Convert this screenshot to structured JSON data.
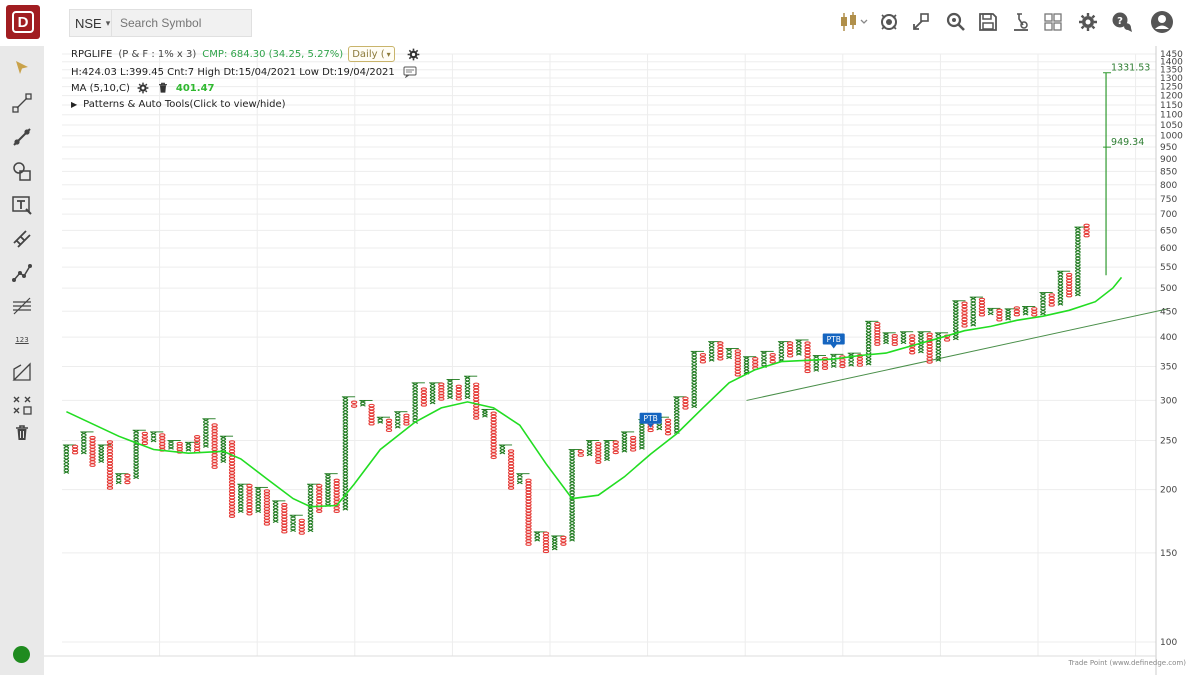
{
  "app": {
    "logo_letter": "D"
  },
  "topbar": {
    "exchange": "NSE",
    "search_placeholder": "Search Symbol",
    "icons": [
      "candlestick-icon",
      "indicator-icon",
      "compare-icon",
      "scan-settings-icon",
      "save-icon",
      "lab-icon",
      "layout-grid-icon",
      "settings-icon",
      "chat-icon",
      "user-icon"
    ]
  },
  "left_toolbar": {
    "tools": [
      "cursor-icon",
      "line-segment-icon",
      "trendline-icon",
      "shapes-icon",
      "text-tool-icon",
      "measure-icon",
      "pattern-icon",
      "fib-icon",
      "count-123-icon",
      "projection-icon",
      "auto-tools-icon",
      "delete-icon"
    ],
    "count_label": "123",
    "status_color": "#1f8b1f"
  },
  "chart_header": {
    "symbol": "RPGLIFE",
    "pf_params": "(P & F : 1% x 3)",
    "cmp": "CMP: 684.30 (34.25, 5.27%)",
    "timeframe": "Daily (",
    "stats": "H:424.03 L:399.45 Cnt:7 High Dt:15/04/2021 Low Dt:19/04/2021",
    "ma_label": "MA (5,10,C)",
    "ma_value": "401.47",
    "patterns_label": "Patterns & Auto Tools(Click to view/hide)",
    "patterns_arrow": "▶"
  },
  "colors": {
    "x_column": "#1f7a1f",
    "o_column": "#e53935",
    "ma_line": "#22dd22",
    "trendline": "#4a8f4a",
    "target_line": "#2f9a2f",
    "ptb_badge": "#1565c0"
  },
  "chart_data": {
    "type": "point-and-figure",
    "y_scale": "log",
    "ylim": [
      100,
      1450
    ],
    "y_ticks": [
      100,
      150,
      200,
      250,
      300,
      350,
      400,
      450,
      500,
      550,
      600,
      650,
      700,
      750,
      800,
      850,
      900,
      950,
      1000,
      1050,
      1100,
      1150,
      1200,
      1250,
      1300,
      1350,
      1400,
      1450
    ],
    "columns": [
      {
        "t": "X",
        "lo": 215,
        "hi": 245
      },
      {
        "t": "O",
        "lo": 235,
        "hi": 245
      },
      {
        "t": "X",
        "lo": 235,
        "hi": 260
      },
      {
        "t": "O",
        "lo": 222,
        "hi": 255
      },
      {
        "t": "X",
        "lo": 226,
        "hi": 245
      },
      {
        "t": "O",
        "lo": 200,
        "hi": 250
      },
      {
        "t": "X",
        "lo": 205,
        "hi": 215
      },
      {
        "t": "O",
        "lo": 205,
        "hi": 215
      },
      {
        "t": "X",
        "lo": 210,
        "hi": 262
      },
      {
        "t": "O",
        "lo": 245,
        "hi": 260
      },
      {
        "t": "X",
        "lo": 248,
        "hi": 260
      },
      {
        "t": "O",
        "lo": 238,
        "hi": 258
      },
      {
        "t": "X",
        "lo": 240,
        "hi": 250
      },
      {
        "t": "O",
        "lo": 236,
        "hi": 248
      },
      {
        "t": "X",
        "lo": 238,
        "hi": 248
      },
      {
        "t": "O",
        "lo": 236,
        "hi": 256
      },
      {
        "t": "X",
        "lo": 242,
        "hi": 276
      },
      {
        "t": "O",
        "lo": 220,
        "hi": 270
      },
      {
        "t": "X",
        "lo": 226,
        "hi": 255
      },
      {
        "t": "O",
        "lo": 176,
        "hi": 250
      },
      {
        "t": "X",
        "lo": 180,
        "hi": 205
      },
      {
        "t": "O",
        "lo": 178,
        "hi": 205
      },
      {
        "t": "X",
        "lo": 180,
        "hi": 202
      },
      {
        "t": "O",
        "lo": 170,
        "hi": 200
      },
      {
        "t": "X",
        "lo": 172,
        "hi": 190
      },
      {
        "t": "O",
        "lo": 164,
        "hi": 188
      },
      {
        "t": "X",
        "lo": 165,
        "hi": 178
      },
      {
        "t": "O",
        "lo": 163,
        "hi": 175
      },
      {
        "t": "X",
        "lo": 165,
        "hi": 205
      },
      {
        "t": "O",
        "lo": 180,
        "hi": 205
      },
      {
        "t": "X",
        "lo": 185,
        "hi": 215
      },
      {
        "t": "O",
        "lo": 180,
        "hi": 210
      },
      {
        "t": "X",
        "lo": 182,
        "hi": 305
      },
      {
        "t": "O",
        "lo": 290,
        "hi": 300
      },
      {
        "t": "X",
        "lo": 292,
        "hi": 300
      },
      {
        "t": "O",
        "lo": 268,
        "hi": 295
      },
      {
        "t": "X",
        "lo": 270,
        "hi": 278
      },
      {
        "t": "O",
        "lo": 260,
        "hi": 276
      },
      {
        "t": "X",
        "lo": 264,
        "hi": 285
      },
      {
        "t": "O",
        "lo": 268,
        "hi": 282
      },
      {
        "t": "X",
        "lo": 270,
        "hi": 325
      },
      {
        "t": "O",
        "lo": 292,
        "hi": 318
      },
      {
        "t": "X",
        "lo": 295,
        "hi": 325
      },
      {
        "t": "O",
        "lo": 300,
        "hi": 325
      },
      {
        "t": "X",
        "lo": 302,
        "hi": 330
      },
      {
        "t": "O",
        "lo": 300,
        "hi": 322
      },
      {
        "t": "X",
        "lo": 302,
        "hi": 335
      },
      {
        "t": "O",
        "lo": 275,
        "hi": 325
      },
      {
        "t": "X",
        "lo": 278,
        "hi": 288
      },
      {
        "t": "O",
        "lo": 230,
        "hi": 285
      },
      {
        "t": "X",
        "lo": 235,
        "hi": 245
      },
      {
        "t": "O",
        "lo": 200,
        "hi": 240
      },
      {
        "t": "X",
        "lo": 205,
        "hi": 215
      },
      {
        "t": "O",
        "lo": 155,
        "hi": 210
      },
      {
        "t": "X",
        "lo": 158,
        "hi": 165
      },
      {
        "t": "O",
        "lo": 150,
        "hi": 165
      },
      {
        "t": "X",
        "lo": 152,
        "hi": 162
      },
      {
        "t": "O",
        "lo": 155,
        "hi": 162
      },
      {
        "t": "X",
        "lo": 158,
        "hi": 240
      },
      {
        "t": "O",
        "lo": 232,
        "hi": 240
      },
      {
        "t": "X",
        "lo": 233,
        "hi": 250
      },
      {
        "t": "O",
        "lo": 225,
        "hi": 248
      },
      {
        "t": "X",
        "lo": 228,
        "hi": 250
      },
      {
        "t": "O",
        "lo": 235,
        "hi": 250
      },
      {
        "t": "X",
        "lo": 237,
        "hi": 260
      },
      {
        "t": "O",
        "lo": 238,
        "hi": 255
      },
      {
        "t": "X",
        "lo": 240,
        "hi": 275
      },
      {
        "t": "O",
        "lo": 260,
        "hi": 275
      },
      {
        "t": "X",
        "lo": 262,
        "hi": 278
      },
      {
        "t": "O",
        "lo": 256,
        "hi": 276
      },
      {
        "t": "X",
        "lo": 258,
        "hi": 305
      },
      {
        "t": "O",
        "lo": 288,
        "hi": 305
      },
      {
        "t": "X",
        "lo": 290,
        "hi": 375
      },
      {
        "t": "O",
        "lo": 355,
        "hi": 372
      },
      {
        "t": "X",
        "lo": 358,
        "hi": 392
      },
      {
        "t": "O",
        "lo": 360,
        "hi": 392
      },
      {
        "t": "X",
        "lo": 362,
        "hi": 380
      },
      {
        "t": "O",
        "lo": 335,
        "hi": 378
      },
      {
        "t": "X",
        "lo": 338,
        "hi": 366
      },
      {
        "t": "O",
        "lo": 345,
        "hi": 365
      },
      {
        "t": "X",
        "lo": 348,
        "hi": 375
      },
      {
        "t": "O",
        "lo": 355,
        "hi": 372
      },
      {
        "t": "X",
        "lo": 358,
        "hi": 392
      },
      {
        "t": "O",
        "lo": 365,
        "hi": 392
      },
      {
        "t": "X",
        "lo": 368,
        "hi": 395
      },
      {
        "t": "O",
        "lo": 340,
        "hi": 392
      },
      {
        "t": "X",
        "lo": 342,
        "hi": 368
      },
      {
        "t": "O",
        "lo": 345,
        "hi": 365
      },
      {
        "t": "X",
        "lo": 348,
        "hi": 370
      },
      {
        "t": "O",
        "lo": 348,
        "hi": 368
      },
      {
        "t": "X",
        "lo": 350,
        "hi": 372
      },
      {
        "t": "O",
        "lo": 350,
        "hi": 370
      },
      {
        "t": "X",
        "lo": 352,
        "hi": 430
      },
      {
        "t": "O",
        "lo": 385,
        "hi": 428
      },
      {
        "t": "X",
        "lo": 388,
        "hi": 408
      },
      {
        "t": "O",
        "lo": 385,
        "hi": 405
      },
      {
        "t": "X",
        "lo": 388,
        "hi": 410
      },
      {
        "t": "O",
        "lo": 370,
        "hi": 405
      },
      {
        "t": "X",
        "lo": 372,
        "hi": 410
      },
      {
        "t": "O",
        "lo": 355,
        "hi": 408
      },
      {
        "t": "X",
        "lo": 358,
        "hi": 408
      },
      {
        "t": "O",
        "lo": 392,
        "hi": 405
      },
      {
        "t": "X",
        "lo": 395,
        "hi": 472
      },
      {
        "t": "O",
        "lo": 418,
        "hi": 470
      },
      {
        "t": "X",
        "lo": 420,
        "hi": 480
      },
      {
        "t": "O",
        "lo": 440,
        "hi": 478
      },
      {
        "t": "X",
        "lo": 442,
        "hi": 456
      },
      {
        "t": "O",
        "lo": 430,
        "hi": 455
      },
      {
        "t": "X",
        "lo": 432,
        "hi": 455
      },
      {
        "t": "O",
        "lo": 440,
        "hi": 460
      },
      {
        "t": "X",
        "lo": 442,
        "hi": 460
      },
      {
        "t": "O",
        "lo": 440,
        "hi": 458
      },
      {
        "t": "X",
        "lo": 442,
        "hi": 490
      },
      {
        "t": "O",
        "lo": 460,
        "hi": 488
      },
      {
        "t": "X",
        "lo": 462,
        "hi": 540
      },
      {
        "t": "O",
        "lo": 480,
        "hi": 535
      },
      {
        "t": "X",
        "lo": 482,
        "hi": 660
      },
      {
        "t": "O",
        "lo": 630,
        "hi": 670
      }
    ],
    "ma_line": [
      {
        "c": 0,
        "v": 285
      },
      {
        "c": 6,
        "v": 255
      },
      {
        "c": 10,
        "v": 240
      },
      {
        "c": 14,
        "v": 236
      },
      {
        "c": 18,
        "v": 238
      },
      {
        "c": 20,
        "v": 230
      },
      {
        "c": 23,
        "v": 210
      },
      {
        "c": 26,
        "v": 192
      },
      {
        "c": 28,
        "v": 185
      },
      {
        "c": 31,
        "v": 186
      },
      {
        "c": 33,
        "v": 205
      },
      {
        "c": 36,
        "v": 240
      },
      {
        "c": 40,
        "v": 272
      },
      {
        "c": 43,
        "v": 290
      },
      {
        "c": 46,
        "v": 298
      },
      {
        "c": 49,
        "v": 290
      },
      {
        "c": 52,
        "v": 268
      },
      {
        "c": 55,
        "v": 225
      },
      {
        "c": 58,
        "v": 192
      },
      {
        "c": 61,
        "v": 195
      },
      {
        "c": 64,
        "v": 212
      },
      {
        "c": 67,
        "v": 235
      },
      {
        "c": 70,
        "v": 258
      },
      {
        "c": 73,
        "v": 290
      },
      {
        "c": 76,
        "v": 325
      },
      {
        "c": 79,
        "v": 345
      },
      {
        "c": 82,
        "v": 358
      },
      {
        "c": 85,
        "v": 360
      },
      {
        "c": 88,
        "v": 362
      },
      {
        "c": 91,
        "v": 368
      },
      {
        "c": 94,
        "v": 372
      },
      {
        "c": 97,
        "v": 385
      },
      {
        "c": 100,
        "v": 398
      },
      {
        "c": 103,
        "v": 412
      },
      {
        "c": 106,
        "v": 420
      },
      {
        "c": 109,
        "v": 432
      },
      {
        "c": 112,
        "v": 440
      },
      {
        "c": 115,
        "v": 452
      },
      {
        "c": 118,
        "v": 470
      },
      {
        "c": 120,
        "v": 500
      },
      {
        "c": 121,
        "v": 525
      }
    ],
    "trendline": {
      "from": {
        "c": 78,
        "v": 300
      },
      "to": {
        "c": 124,
        "v": 455
      }
    },
    "vertical_target": {
      "c": 119,
      "from": 530,
      "to": 1331.53
    },
    "annotations": [
      {
        "label": "1331.53",
        "c": 119,
        "v": 1331.53
      },
      {
        "label": "949.34",
        "c": 119,
        "v": 949.34
      }
    ],
    "ptb_badges": [
      {
        "label": "PTB",
        "c": 67,
        "v": 265
      },
      {
        "label": "PTB",
        "c": 88,
        "v": 380
      }
    ]
  },
  "footer": {
    "credit": "Trade Point (www.definedge.com)"
  }
}
